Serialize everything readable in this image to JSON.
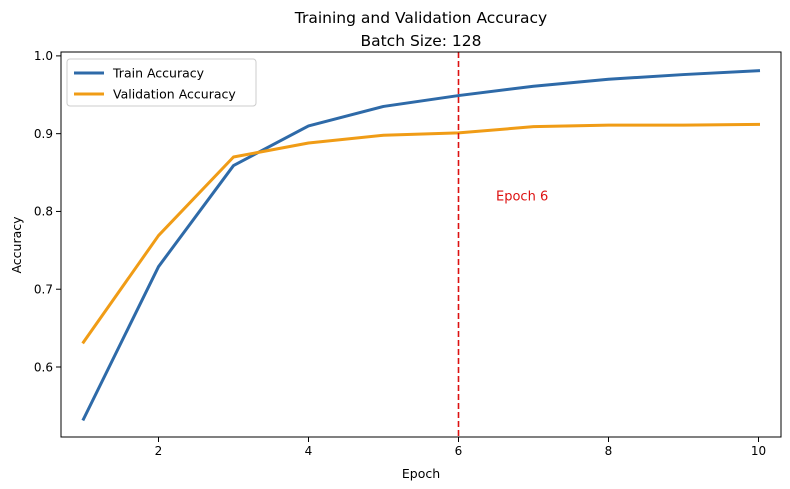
{
  "chart_data": {
    "type": "line",
    "title": "Training and Validation Accuracy",
    "subtitle": "Batch Size: 128",
    "xlabel": "Epoch",
    "ylabel": "Accuracy",
    "xlim": [
      0.7,
      10.3
    ],
    "ylim": [
      0.51,
      1.005
    ],
    "xticks": [
      2,
      4,
      6,
      8,
      10
    ],
    "yticks": [
      0.6,
      0.7,
      0.8,
      0.9,
      1.0
    ],
    "ytick_labels": [
      "0.6",
      "0.7",
      "0.8",
      "0.9",
      "1.0"
    ],
    "grid": false,
    "legend_position": "top-left",
    "x": [
      1,
      2,
      3,
      4,
      5,
      6,
      7,
      8,
      9,
      10
    ],
    "series": [
      {
        "name": "Train Accuracy",
        "color": "#2e6aa8",
        "values": [
          0.533,
          0.729,
          0.859,
          0.91,
          0.935,
          0.949,
          0.961,
          0.97,
          0.976,
          0.981
        ]
      },
      {
        "name": "Validation Accuracy",
        "color": "#f09c16",
        "values": [
          0.632,
          0.769,
          0.87,
          0.888,
          0.898,
          0.901,
          0.909,
          0.911,
          0.911,
          0.912
        ]
      }
    ],
    "annotations": [
      {
        "type": "vline",
        "x": 6,
        "color": "#dd1111"
      },
      {
        "type": "text",
        "text": "Epoch 6",
        "x": 6.5,
        "y": 0.82,
        "color": "#dd1111"
      }
    ]
  }
}
